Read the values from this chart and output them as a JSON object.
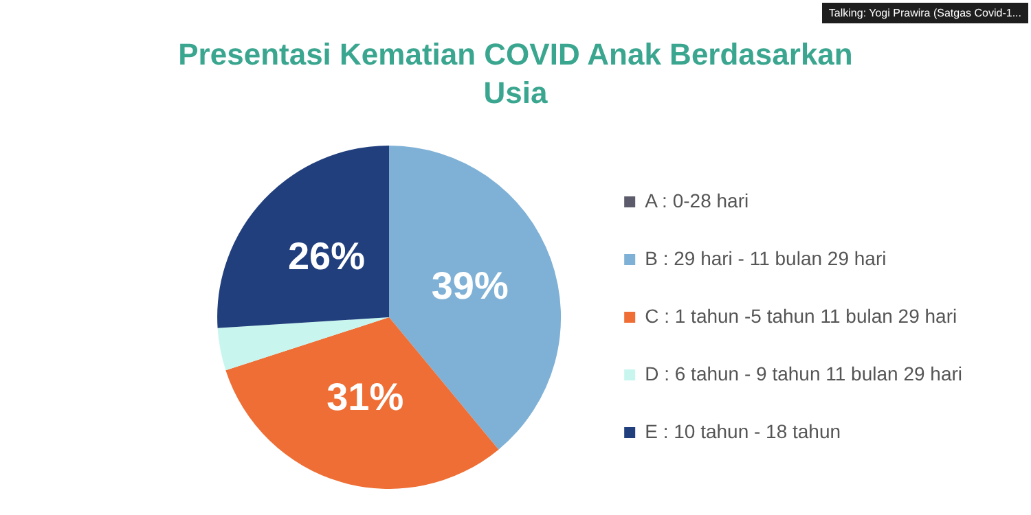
{
  "chart_data": {
    "type": "pie",
    "title": "Presentasi Kematian COVID Anak Berdasarkan Usia",
    "categories": [
      "A : 0-28 hari",
      "B : 29 hari - 11 bulan 29 hari",
      "C : 1 tahun -5 tahun 11 bulan 29 hari",
      "D : 6 tahun - 9 tahun 11 bulan 29 hari",
      "E : 10 tahun - 18 tahun"
    ],
    "values": [
      0,
      39,
      31,
      4,
      26
    ],
    "colors": [
      "#5b5b6b",
      "#7fb1d6",
      "#ee6e35",
      "#c8f6ef",
      "#213f7d"
    ],
    "value_labels": [
      null,
      "39%",
      "31%",
      null,
      "26%"
    ],
    "legend": "right",
    "annotations": [
      "Talking: Yogi Prawira (Satgas Covid-1..."
    ]
  }
}
